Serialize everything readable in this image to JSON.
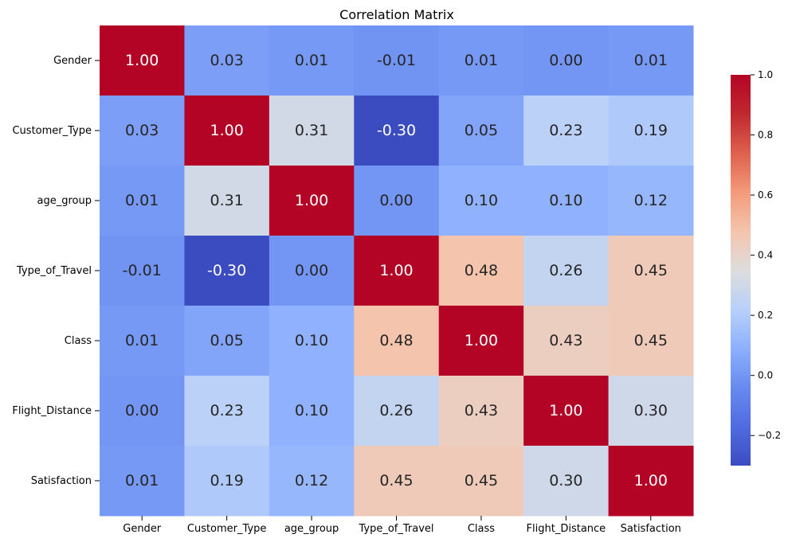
{
  "chart_data": {
    "type": "heatmap",
    "title": "Correlation Matrix",
    "colormap": "coolwarm",
    "x_categories": [
      "Gender",
      "Customer_Type",
      "age_group",
      "Type_of_Travel",
      "Class",
      "Flight_Distance",
      "Satisfaction"
    ],
    "y_categories": [
      "Gender",
      "Customer_Type",
      "age_group",
      "Type_of_Travel",
      "Class",
      "Flight_Distance",
      "Satisfaction"
    ],
    "values": [
      [
        1.0,
        0.03,
        0.01,
        -0.01,
        0.01,
        0.0,
        0.01
      ],
      [
        0.03,
        1.0,
        0.31,
        -0.3,
        0.05,
        0.23,
        0.19
      ],
      [
        0.01,
        0.31,
        1.0,
        0.0,
        0.1,
        0.1,
        0.12
      ],
      [
        -0.01,
        -0.3,
        0.0,
        1.0,
        0.48,
        0.26,
        0.45
      ],
      [
        0.01,
        0.05,
        0.1,
        0.48,
        1.0,
        0.43,
        0.45
      ],
      [
        0.0,
        0.23,
        0.1,
        0.26,
        0.43,
        1.0,
        0.3
      ],
      [
        0.01,
        0.19,
        0.12,
        0.45,
        0.45,
        0.3,
        1.0
      ]
    ],
    "annotations": [
      [
        "1.00",
        "0.03",
        "0.01",
        "-0.01",
        "0.01",
        "0.00",
        "0.01"
      ],
      [
        "0.03",
        "1.00",
        "0.31",
        "-0.30",
        "0.05",
        "0.23",
        "0.19"
      ],
      [
        "0.01",
        "0.31",
        "1.00",
        "0.00",
        "0.10",
        "0.10",
        "0.12"
      ],
      [
        "-0.01",
        "-0.30",
        "0.00",
        "1.00",
        "0.48",
        "0.26",
        "0.45"
      ],
      [
        "0.01",
        "0.05",
        "0.10",
        "0.48",
        "1.00",
        "0.43",
        "0.45"
      ],
      [
        "0.00",
        "0.23",
        "0.10",
        "0.26",
        "0.43",
        "1.00",
        "0.30"
      ],
      [
        "0.01",
        "0.19",
        "0.12",
        "0.45",
        "0.45",
        "0.30",
        "1.00"
      ]
    ],
    "colorbar": {
      "vmin": -0.3,
      "vmax": 1.0,
      "ticks": [
        -0.2,
        0.0,
        0.2,
        0.4,
        0.6,
        0.8,
        1.0
      ],
      "tick_labels": [
        "−0.2",
        "0.0",
        "0.2",
        "0.4",
        "0.6",
        "0.8",
        "1.0"
      ]
    },
    "colors": {
      "text_dark": "#262626",
      "text_light": "#ffffff",
      "axis_text": "#000000"
    }
  }
}
